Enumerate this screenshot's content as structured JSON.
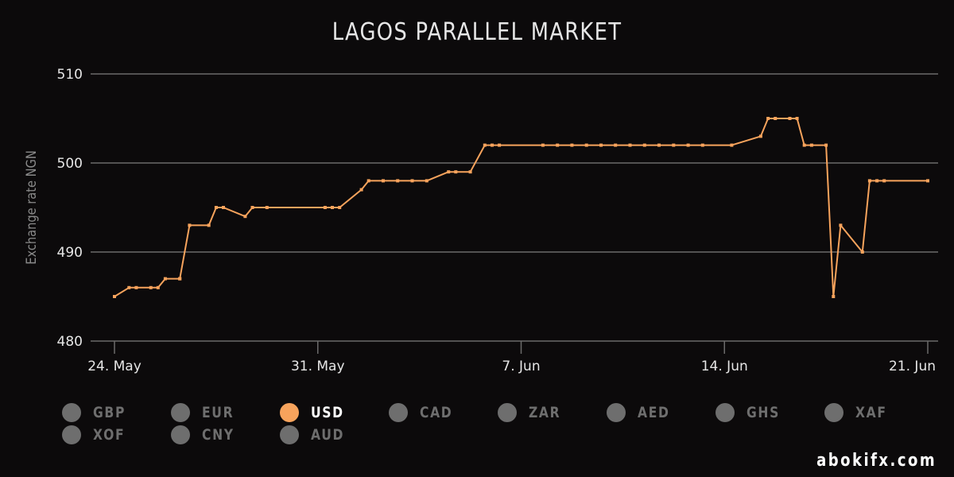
{
  "chart_data": {
    "type": "line",
    "title": "LAGOS PARALLEL MARKET",
    "xlabel": "",
    "ylabel": "Exchange rate NGN",
    "ylim": [
      480,
      510
    ],
    "yticks": [
      480,
      490,
      500,
      510
    ],
    "xlim": [
      "2020-05-24",
      "2020-06-21"
    ],
    "xticks": [
      {
        "date": "2020-05-24",
        "label": "24. May"
      },
      {
        "date": "2020-05-31",
        "label": "31. May"
      },
      {
        "date": "2020-06-07",
        "label": "7. Jun"
      },
      {
        "date": "2020-06-14",
        "label": "14. Jun"
      },
      {
        "date": "2020-06-21",
        "label": "21. Jun"
      }
    ],
    "grid": true,
    "series": [
      {
        "name": "USD",
        "color": "#f7a35c",
        "points": [
          [
            "2020-05-24 00:00",
            485
          ],
          [
            "2020-05-24 12:00",
            486
          ],
          [
            "2020-05-24 18:00",
            486
          ],
          [
            "2020-05-25 06:00",
            486
          ],
          [
            "2020-05-25 12:00",
            486
          ],
          [
            "2020-05-25 18:00",
            487
          ],
          [
            "2020-05-26 06:00",
            487
          ],
          [
            "2020-05-26 06:00",
            487
          ],
          [
            "2020-05-26 14:00",
            493
          ],
          [
            "2020-05-27 06:00",
            493
          ],
          [
            "2020-05-27 12:00",
            495
          ],
          [
            "2020-05-27 18:00",
            495
          ],
          [
            "2020-05-28 12:00",
            494
          ],
          [
            "2020-05-28 18:00",
            495
          ],
          [
            "2020-05-29 06:00",
            495
          ],
          [
            "2020-05-31 06:00",
            495
          ],
          [
            "2020-05-31 12:00",
            495
          ],
          [
            "2020-05-31 18:00",
            495
          ],
          [
            "2020-06-01 12:00",
            497
          ],
          [
            "2020-06-01 18:00",
            498
          ],
          [
            "2020-06-02 06:00",
            498
          ],
          [
            "2020-06-02 18:00",
            498
          ],
          [
            "2020-06-03 06:00",
            498
          ],
          [
            "2020-06-03 18:00",
            498
          ],
          [
            "2020-06-04 12:00",
            499
          ],
          [
            "2020-06-04 18:00",
            499
          ],
          [
            "2020-06-05 06:00",
            499
          ],
          [
            "2020-06-05 18:00",
            502
          ],
          [
            "2020-06-06 00:00",
            502
          ],
          [
            "2020-06-06 06:00",
            502
          ],
          [
            "2020-06-07 18:00",
            502
          ],
          [
            "2020-06-08 06:00",
            502
          ],
          [
            "2020-06-08 18:00",
            502
          ],
          [
            "2020-06-09 06:00",
            502
          ],
          [
            "2020-06-09 18:00",
            502
          ],
          [
            "2020-06-10 06:00",
            502
          ],
          [
            "2020-06-10 18:00",
            502
          ],
          [
            "2020-06-11 06:00",
            502
          ],
          [
            "2020-06-11 18:00",
            502
          ],
          [
            "2020-06-12 06:00",
            502
          ],
          [
            "2020-06-12 18:00",
            502
          ],
          [
            "2020-06-13 06:00",
            502
          ],
          [
            "2020-06-14 06:00",
            502
          ],
          [
            "2020-06-15 06:00",
            503
          ],
          [
            "2020-06-15 12:00",
            505
          ],
          [
            "2020-06-15 18:00",
            505
          ],
          [
            "2020-06-16 06:00",
            505
          ],
          [
            "2020-06-16 12:00",
            505
          ],
          [
            "2020-06-16 18:00",
            502
          ],
          [
            "2020-06-17 00:00",
            502
          ],
          [
            "2020-06-17 12:00",
            502
          ],
          [
            "2020-06-17 18:00",
            485
          ],
          [
            "2020-06-18 00:00",
            493
          ],
          [
            "2020-06-18 18:00",
            490
          ],
          [
            "2020-06-19 00:00",
            498
          ],
          [
            "2020-06-19 06:00",
            498
          ],
          [
            "2020-06-19 12:00",
            498
          ],
          [
            "2020-06-21 00:00",
            498
          ]
        ]
      }
    ]
  },
  "legend": {
    "items": [
      {
        "label": "GBP",
        "color": "#6e6e6e",
        "active": false
      },
      {
        "label": "EUR",
        "color": "#6e6e6e",
        "active": false
      },
      {
        "label": "USD",
        "color": "#f7a35c",
        "active": true
      },
      {
        "label": "CAD",
        "color": "#6e6e6e",
        "active": false
      },
      {
        "label": "ZAR",
        "color": "#6e6e6e",
        "active": false
      },
      {
        "label": "AED",
        "color": "#6e6e6e",
        "active": false
      },
      {
        "label": "GHS",
        "color": "#6e6e6e",
        "active": false
      },
      {
        "label": "XAF",
        "color": "#6e6e6e",
        "active": false
      },
      {
        "label": "XOF",
        "color": "#6e6e6e",
        "active": false
      },
      {
        "label": "CNY",
        "color": "#6e6e6e",
        "active": false
      },
      {
        "label": "AUD",
        "color": "#6e6e6e",
        "active": false
      }
    ]
  },
  "credit": "abokifx.com",
  "colors": {
    "background": "#0c0a0b",
    "grid": "#6b6b6b",
    "text": "#e6e6e6",
    "axis_title": "#8a8a8a",
    "legend_active_text": "#ffffff",
    "legend_inactive_text": "#6e6e6e"
  }
}
